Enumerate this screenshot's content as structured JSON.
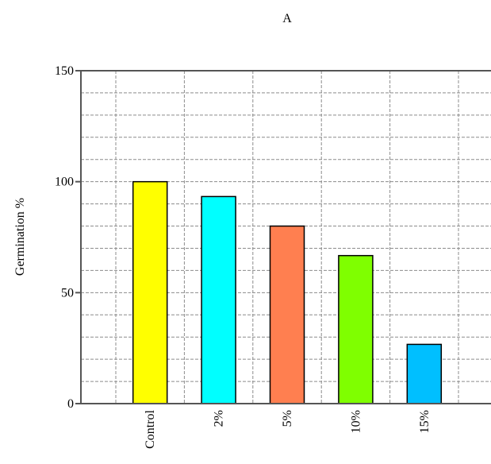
{
  "chart_data": {
    "type": "bar",
    "title": "A",
    "ylabel": "Germination %",
    "xlabel": "",
    "categories": [
      "Control",
      "2%",
      "5%",
      "10%",
      "15%"
    ],
    "values": [
      100,
      93.3,
      80,
      66.7,
      26.7
    ],
    "colors": [
      "#ffff00",
      "#00ffff",
      "#ff7f50",
      "#7fff00",
      "#00bfff"
    ],
    "ylim": [
      0,
      150
    ],
    "yticks": [
      0,
      50,
      100,
      150
    ],
    "y_minor_step": 10,
    "grid": true
  }
}
